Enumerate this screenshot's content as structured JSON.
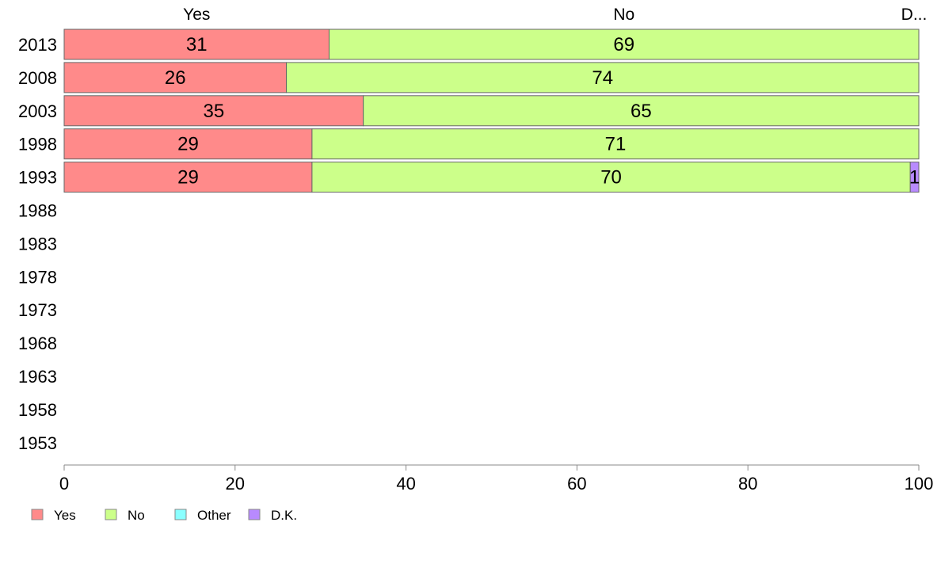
{
  "chart_data": {
    "type": "bar",
    "orientation": "horizontal",
    "stacked": true,
    "categories": [
      "2013",
      "2008",
      "2003",
      "1998",
      "1993",
      "1988",
      "1983",
      "1978",
      "1973",
      "1968",
      "1963",
      "1958",
      "1953"
    ],
    "series": [
      {
        "name": "Yes",
        "values": [
          31,
          26,
          35,
          29,
          29,
          null,
          null,
          null,
          null,
          null,
          null,
          null,
          null
        ]
      },
      {
        "name": "No",
        "values": [
          69,
          74,
          65,
          71,
          70,
          null,
          null,
          null,
          null,
          null,
          null,
          null,
          null
        ]
      },
      {
        "name": "Other",
        "values": [
          0,
          0,
          0,
          0,
          0,
          null,
          null,
          null,
          null,
          null,
          null,
          null,
          null
        ]
      },
      {
        "name": "D.K.",
        "values": [
          0,
          0,
          0,
          0,
          1,
          null,
          null,
          null,
          null,
          null,
          null,
          null,
          null
        ]
      }
    ],
    "colors": {
      "Yes": "#ff8a8a",
      "No": "#ccff8a",
      "Other": "#8affff",
      "D.K.": "#b88aff"
    },
    "top_labels": [
      "Yes",
      "No",
      "D.K."
    ],
    "xticks": [
      0,
      20,
      40,
      60,
      80,
      100
    ],
    "xlim": [
      0,
      100
    ],
    "title": "",
    "xlabel": "",
    "ylabel": "",
    "grid": false,
    "legend_position": "bottom-left"
  }
}
